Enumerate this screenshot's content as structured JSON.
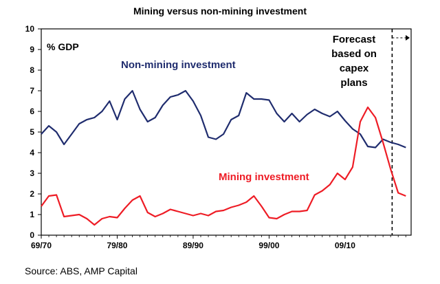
{
  "chart_data": {
    "type": "line",
    "title": "Mining versus non-mining investment",
    "ylabel": "% GDP",
    "xlabel": "",
    "ylim": [
      0,
      10
    ],
    "yticks": [
      0,
      1,
      2,
      3,
      4,
      5,
      6,
      7,
      8,
      9,
      10
    ],
    "xticks": [
      {
        "x": 0,
        "label": "69/70"
      },
      {
        "x": 10,
        "label": "79/80"
      },
      {
        "x": 20,
        "label": "89/90"
      },
      {
        "x": 30,
        "label": "99/00"
      },
      {
        "x": 40,
        "label": "09/10"
      }
    ],
    "xlim": [
      0,
      48.7
    ],
    "grid": false,
    "forecast_x": 46.2,
    "annotation": "Forecast based on capex plans",
    "annotation_lines": [
      "Forecast",
      "based on",
      "capex",
      "plans"
    ],
    "series": [
      {
        "name": "Non-mining investment",
        "color": "#1f2c6e",
        "x": [
          0,
          1,
          2,
          3,
          4,
          5,
          6,
          7,
          8,
          9,
          10,
          11,
          12,
          13,
          14,
          15,
          16,
          17,
          18,
          19,
          20,
          21,
          22,
          23,
          24,
          25,
          26,
          27,
          28,
          29,
          30,
          31,
          32,
          33,
          34,
          35,
          36,
          37,
          38,
          39,
          40,
          41,
          42,
          43,
          44,
          45,
          46,
          47,
          48
        ],
        "values": [
          4.9,
          5.3,
          5.0,
          4.4,
          4.9,
          5.4,
          5.6,
          5.7,
          6.0,
          6.5,
          5.6,
          6.6,
          7.0,
          6.1,
          5.5,
          5.7,
          6.3,
          6.7,
          6.8,
          7.0,
          6.5,
          5.8,
          4.75,
          4.65,
          4.9,
          5.6,
          5.8,
          6.9,
          6.6,
          6.6,
          6.55,
          5.9,
          5.5,
          5.9,
          5.5,
          5.85,
          6.1,
          5.9,
          5.75,
          6.0,
          5.55,
          5.15,
          4.9,
          4.3,
          4.25,
          4.65,
          4.5,
          4.4,
          4.25
        ]
      },
      {
        "name": "Mining investment",
        "color": "#ee1c25",
        "x": [
          0,
          1,
          2,
          3,
          4,
          5,
          6,
          7,
          8,
          9,
          10,
          11,
          12,
          13,
          14,
          15,
          16,
          17,
          18,
          19,
          20,
          21,
          22,
          23,
          24,
          25,
          26,
          27,
          28,
          29,
          30,
          31,
          32,
          33,
          34,
          35,
          36,
          37,
          38,
          39,
          40,
          41,
          42,
          43,
          44,
          45,
          46,
          47,
          48
        ],
        "values": [
          1.4,
          1.9,
          1.95,
          0.9,
          0.95,
          1.0,
          0.8,
          0.5,
          0.8,
          0.9,
          0.85,
          1.3,
          1.7,
          1.9,
          1.1,
          0.9,
          1.05,
          1.25,
          1.15,
          1.05,
          0.95,
          1.05,
          0.95,
          1.15,
          1.2,
          1.35,
          1.45,
          1.6,
          1.9,
          1.4,
          0.85,
          0.8,
          1.0,
          1.15,
          1.15,
          1.2,
          1.95,
          2.15,
          2.45,
          3.0,
          2.7,
          3.3,
          5.5,
          6.2,
          5.7,
          4.5,
          3.2,
          2.05,
          1.9
        ]
      }
    ],
    "labels": {
      "non_mining": "Non-mining investment",
      "mining": "Mining investment"
    }
  },
  "source": "Source: ABS, AMP Capital"
}
